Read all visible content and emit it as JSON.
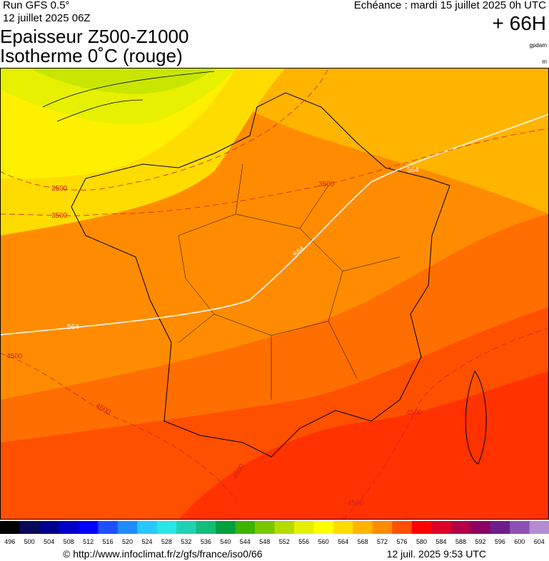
{
  "header": {
    "run": "Run GFS 0.5°",
    "date": "12 juillet 2025 06Z",
    "echeance": "Echéance : mardi 15 juillet 2025 0h UTC",
    "lead": "+ 66H",
    "title1": "Epaisseur Z500-Z1000",
    "title2": "Isotherme 0˚C (rouge)",
    "unit1": "gpdam",
    "unit2": "m"
  },
  "map": {
    "contour_labels": [
      "564",
      "564",
      "564",
      "2500",
      "3500",
      "3500",
      "4500",
      "4500",
      "4500",
      "4500",
      "4500"
    ]
  },
  "legend": {
    "levels": [
      496,
      500,
      504,
      508,
      512,
      516,
      520,
      524,
      528,
      532,
      536,
      540,
      544,
      548,
      552,
      556,
      560,
      564,
      568,
      572,
      576,
      580,
      584,
      588,
      592,
      596,
      600,
      604
    ],
    "colors": [
      "#000000",
      "#0a0a5a",
      "#00008c",
      "#0000c8",
      "#0000ff",
      "#1e50ff",
      "#1e8cff",
      "#28c8ff",
      "#28e6e6",
      "#20d2b4",
      "#14be78",
      "#00a03c",
      "#3cb400",
      "#78c800",
      "#b4dc00",
      "#e6f000",
      "#ffff00",
      "#ffdc00",
      "#ffb400",
      "#ff8c00",
      "#ff5000",
      "#ff0000",
      "#dc0028",
      "#b40046",
      "#8c0064",
      "#6e1e8c",
      "#8c50b4",
      "#b48cd2"
    ]
  },
  "footer": {
    "url": "© http://www.infoclimat.fr/z/gfs/france/iso0/66",
    "time": "12 juil. 2025  9:53 UTC"
  }
}
